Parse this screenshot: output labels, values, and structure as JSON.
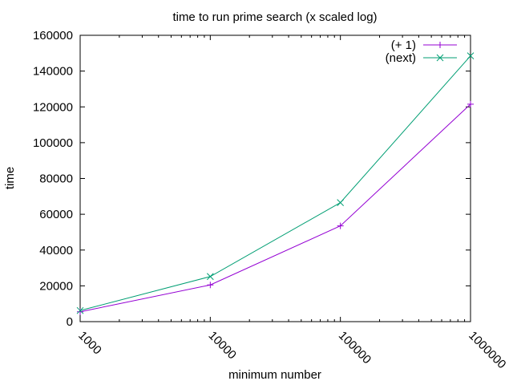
{
  "chart_data": {
    "type": "line",
    "title": "time to run prime search (x scaled log)",
    "xlabel": "minimum number",
    "ylabel": "time",
    "x_scale": "log",
    "x": [
      1000,
      10000,
      100000,
      1000000
    ],
    "x_tick_labels": [
      "1000",
      "10000",
      "100000",
      "1000000"
    ],
    "ylim": [
      0,
      160000
    ],
    "y_ticks": [
      0,
      20000,
      40000,
      60000,
      80000,
      100000,
      120000,
      140000,
      160000
    ],
    "y_tick_labels": [
      "0",
      "20000",
      "40000",
      "60000",
      "80000",
      "100000",
      "120000",
      "140000",
      "160000"
    ],
    "grid": false,
    "legend_position": "top-right",
    "series": [
      {
        "name": "(+ 1)",
        "color": "#9400d3",
        "marker": "plus",
        "values": [
          5500,
          20500,
          53500,
          121500
        ]
      },
      {
        "name": "(next)",
        "color": "#009e73",
        "marker": "cross",
        "values": [
          6200,
          25200,
          66500,
          148500
        ]
      }
    ]
  }
}
